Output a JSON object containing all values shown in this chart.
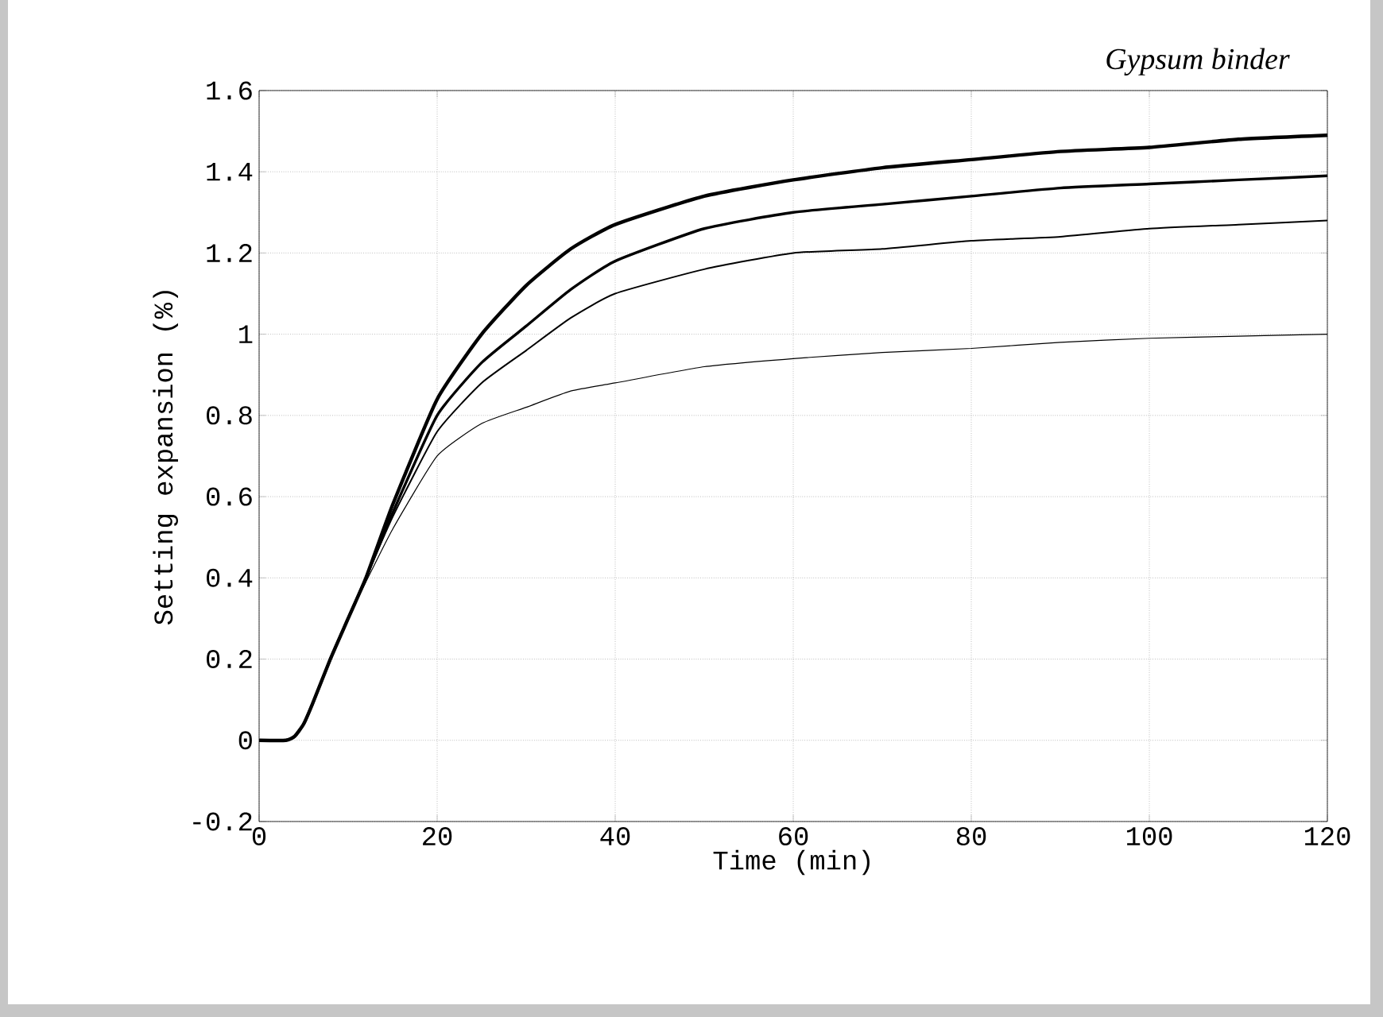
{
  "chart_data": {
    "type": "line",
    "title": "Gypsum binder",
    "xlabel": "Time (min)",
    "ylabel": "Setting expansion (%)",
    "xlim": [
      0,
      120
    ],
    "ylim": [
      -0.2,
      1.6
    ],
    "xticks": [
      0,
      20,
      40,
      60,
      80,
      100,
      120
    ],
    "yticks": [
      -0.2,
      0,
      0.2,
      0.4,
      0.6,
      0.8,
      1,
      1.2,
      1.4,
      1.6
    ],
    "grid": true,
    "line_style": "solid",
    "series": [
      {
        "color": "#000000",
        "x": [
          0,
          3,
          4,
          5,
          6,
          8,
          10,
          12,
          15,
          20,
          25,
          30,
          35,
          40,
          50,
          60,
          70,
          80,
          90,
          100,
          110,
          120
        ],
        "values": [
          0,
          0,
          0.01,
          0.04,
          0.09,
          0.2,
          0.3,
          0.4,
          0.58,
          0.84,
          1.0,
          1.12,
          1.21,
          1.27,
          1.34,
          1.38,
          1.41,
          1.43,
          1.45,
          1.46,
          1.48,
          1.49
        ]
      },
      {
        "color": "#000000",
        "x": [
          0,
          3,
          4,
          5,
          6,
          8,
          10,
          12,
          15,
          20,
          25,
          30,
          35,
          40,
          50,
          60,
          70,
          80,
          90,
          100,
          110,
          120
        ],
        "values": [
          0,
          0,
          0.01,
          0.04,
          0.09,
          0.2,
          0.3,
          0.4,
          0.56,
          0.8,
          0.93,
          1.02,
          1.11,
          1.18,
          1.26,
          1.3,
          1.32,
          1.34,
          1.36,
          1.37,
          1.38,
          1.39
        ]
      },
      {
        "color": "#000000",
        "x": [
          0,
          3,
          4,
          5,
          6,
          8,
          10,
          12,
          15,
          20,
          25,
          30,
          35,
          40,
          50,
          60,
          70,
          80,
          90,
          100,
          110,
          120
        ],
        "values": [
          0,
          0,
          0.01,
          0.04,
          0.09,
          0.2,
          0.3,
          0.4,
          0.55,
          0.76,
          0.88,
          0.96,
          1.04,
          1.1,
          1.16,
          1.2,
          1.21,
          1.23,
          1.24,
          1.26,
          1.27,
          1.28
        ]
      },
      {
        "color": "#000000",
        "x": [
          0,
          3,
          4,
          5,
          6,
          8,
          10,
          12,
          15,
          20,
          25,
          30,
          35,
          40,
          50,
          60,
          70,
          80,
          90,
          100,
          110,
          120
        ],
        "values": [
          0,
          0,
          0.01,
          0.04,
          0.09,
          0.2,
          0.3,
          0.39,
          0.52,
          0.7,
          0.78,
          0.82,
          0.86,
          0.88,
          0.92,
          0.94,
          0.955,
          0.965,
          0.98,
          0.99,
          0.995,
          1.0
        ]
      }
    ]
  }
}
